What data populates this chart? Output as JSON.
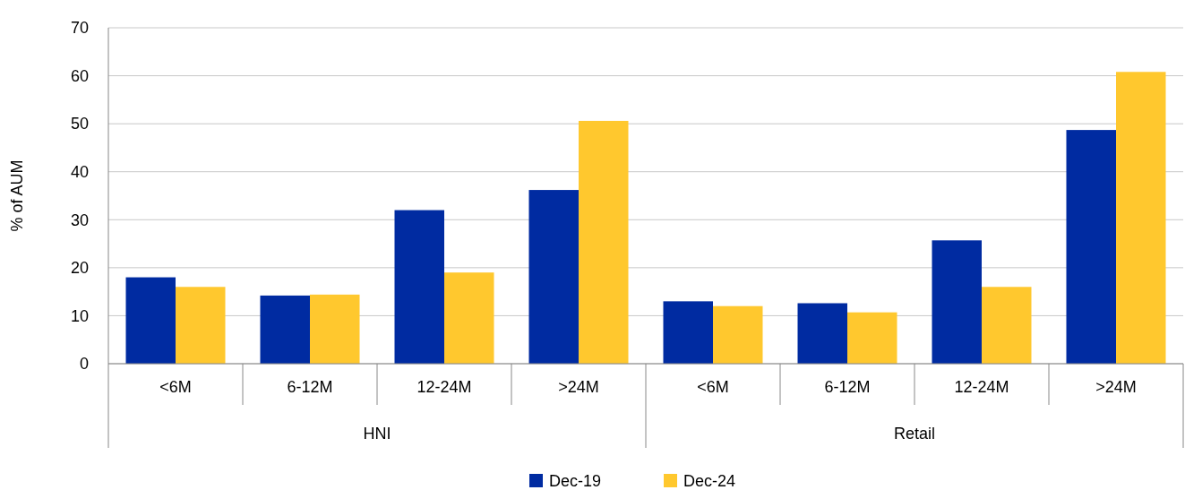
{
  "chart_data": {
    "type": "bar",
    "ylabel": "% of AUM",
    "categories": [
      "<6M",
      "6-12M",
      "12-24M",
      ">24M",
      "<6M",
      "6-12M",
      "12-24M",
      ">24M"
    ],
    "series": [
      {
        "name": "Dec-19",
        "color": "#002ba1",
        "values": [
          18,
          14.2,
          32,
          36.2,
          13,
          12.6,
          25.7,
          48.7
        ]
      },
      {
        "name": "Dec-24",
        "color": "#ffc82e",
        "values": [
          16,
          14.4,
          19,
          50.6,
          12,
          10.7,
          16,
          60.8
        ]
      }
    ],
    "annotations": [
      "HNI",
      "Retail"
    ],
    "ylim": [
      0,
      70
    ],
    "yticks": [
      0,
      10,
      20,
      30,
      40,
      50,
      60,
      70
    ],
    "grid": "y",
    "legend": "bottom"
  }
}
